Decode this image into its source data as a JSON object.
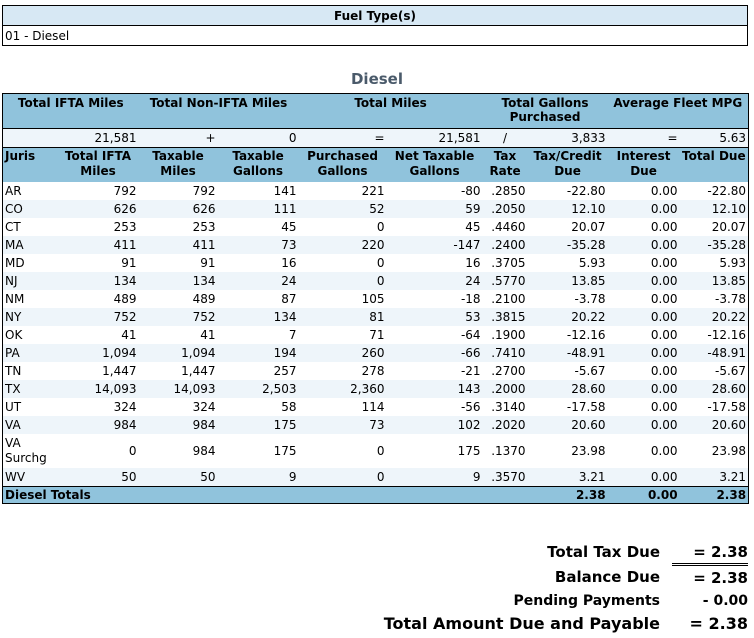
{
  "fuel_type": {
    "header": "Fuel Type(s)",
    "value": "01 - Diesel"
  },
  "section_title": "Diesel",
  "summary": {
    "headers": [
      "Total IFTA Miles",
      "Total Non-IFTA Miles",
      "Total Miles",
      "Total Gallons Purchased",
      "Average Fleet MPG"
    ],
    "total_ifta_miles": "21,581",
    "plus": "+",
    "non_ifta_miles": "0",
    "equals1": "=",
    "total_miles": "21,581",
    "slash": "/",
    "total_gallons": "3,833",
    "equals2": "=",
    "avg_mpg": "5.63"
  },
  "columns": [
    "Juris",
    "Total IFTA Miles",
    "Taxable Miles",
    "Taxable Gallons",
    "Purchased Gallons",
    "Net Taxable Gallons",
    "Tax Rate",
    "Tax/Credit Due",
    "Interest Due",
    "Total Due"
  ],
  "rows": [
    [
      "AR",
      "792",
      "792",
      "141",
      "221",
      "-80",
      ".2850",
      "-22.80",
      "0.00",
      "-22.80"
    ],
    [
      "CO",
      "626",
      "626",
      "111",
      "52",
      "59",
      ".2050",
      "12.10",
      "0.00",
      "12.10"
    ],
    [
      "CT",
      "253",
      "253",
      "45",
      "0",
      "45",
      ".4460",
      "20.07",
      "0.00",
      "20.07"
    ],
    [
      "MA",
      "411",
      "411",
      "73",
      "220",
      "-147",
      ".2400",
      "-35.28",
      "0.00",
      "-35.28"
    ],
    [
      "MD",
      "91",
      "91",
      "16",
      "0",
      "16",
      ".3705",
      "5.93",
      "0.00",
      "5.93"
    ],
    [
      "NJ",
      "134",
      "134",
      "24",
      "0",
      "24",
      ".5770",
      "13.85",
      "0.00",
      "13.85"
    ],
    [
      "NM",
      "489",
      "489",
      "87",
      "105",
      "-18",
      ".2100",
      "-3.78",
      "0.00",
      "-3.78"
    ],
    [
      "NY",
      "752",
      "752",
      "134",
      "81",
      "53",
      ".3815",
      "20.22",
      "0.00",
      "20.22"
    ],
    [
      "OK",
      "41",
      "41",
      "7",
      "71",
      "-64",
      ".1900",
      "-12.16",
      "0.00",
      "-12.16"
    ],
    [
      "PA",
      "1,094",
      "1,094",
      "194",
      "260",
      "-66",
      ".7410",
      "-48.91",
      "0.00",
      "-48.91"
    ],
    [
      "TN",
      "1,447",
      "1,447",
      "257",
      "278",
      "-21",
      ".2700",
      "-5.67",
      "0.00",
      "-5.67"
    ],
    [
      "TX",
      "14,093",
      "14,093",
      "2,503",
      "2,360",
      "143",
      ".2000",
      "28.60",
      "0.00",
      "28.60"
    ],
    [
      "UT",
      "324",
      "324",
      "58",
      "114",
      "-56",
      ".3140",
      "-17.58",
      "0.00",
      "-17.58"
    ],
    [
      "VA",
      "984",
      "984",
      "175",
      "73",
      "102",
      ".2020",
      "20.60",
      "0.00",
      "20.60"
    ],
    [
      "VA Surchg",
      "0",
      "984",
      "175",
      "0",
      "175",
      ".1370",
      "23.98",
      "0.00",
      "23.98"
    ],
    [
      "WV",
      "50",
      "50",
      "9",
      "0",
      "9",
      ".3570",
      "3.21",
      "0.00",
      "3.21"
    ]
  ],
  "totals": {
    "label": "Diesel Totals",
    "tax_credit_due": "2.38",
    "interest_due": "0.00",
    "total_due": "2.38"
  },
  "grand": {
    "total_tax_due_label": "Total Tax Due",
    "total_tax_due_value": "= 2.38",
    "balance_due_label": "Balance Due",
    "balance_due_value": "= 2.38",
    "pending_payments_label": "Pending Payments",
    "pending_payments_value": "- 0.00",
    "total_payable_label": "Total Amount Due and Payable",
    "total_payable_value": "= 2.38"
  }
}
